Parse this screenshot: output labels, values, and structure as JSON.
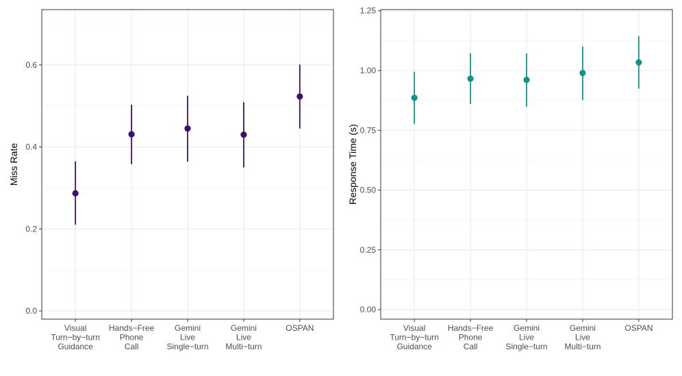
{
  "chart_data": [
    {
      "type": "scatter",
      "title": "",
      "xlabel": "",
      "ylabel": "Miss Rate",
      "ylim": [
        -0.02,
        0.735
      ],
      "yticks": [
        "0.0",
        "0.2",
        "0.4",
        "0.6"
      ],
      "ytick_values": [
        0.0,
        0.2,
        0.4,
        0.6
      ],
      "categories": [
        [
          "Visual",
          "Turn−by−turn",
          "Guidance"
        ],
        [
          "Hands−Free",
          "Phone",
          "Call"
        ],
        [
          "Gemini",
          "Live",
          "Single−turn"
        ],
        [
          "Gemini",
          "Live",
          "Multi−turn"
        ],
        [
          "OSPAN"
        ]
      ],
      "values": [
        0.287,
        0.431,
        0.445,
        0.43,
        0.523
      ],
      "lower": [
        0.21,
        0.358,
        0.364,
        0.35,
        0.445
      ],
      "upper": [
        0.365,
        0.503,
        0.525,
        0.509,
        0.601
      ],
      "grid": true,
      "color": "#3B0F70"
    },
    {
      "type": "scatter",
      "title": "",
      "xlabel": "",
      "ylabel": "Response Time (s)",
      "ylim": [
        -0.04,
        1.255
      ],
      "yticks": [
        "0.00",
        "0.25",
        "0.50",
        "0.75",
        "1.00",
        "1.25"
      ],
      "ytick_values": [
        0.0,
        0.25,
        0.5,
        0.75,
        1.0,
        1.25
      ],
      "categories": [
        [
          "Visual",
          "Turn−by−turn",
          "Guidance"
        ],
        [
          "Hands−Free",
          "Phone",
          "Call"
        ],
        [
          "Gemini",
          "Live",
          "Single−turn"
        ],
        [
          "Gemini",
          "Live",
          "Multi−turn"
        ],
        [
          "OSPAN"
        ]
      ],
      "values": [
        0.886,
        0.966,
        0.961,
        0.99,
        1.034
      ],
      "lower": [
        0.776,
        0.86,
        0.849,
        0.877,
        0.924
      ],
      "upper": [
        0.995,
        1.072,
        1.071,
        1.1,
        1.144
      ],
      "grid": true,
      "color": "#12918E"
    }
  ]
}
